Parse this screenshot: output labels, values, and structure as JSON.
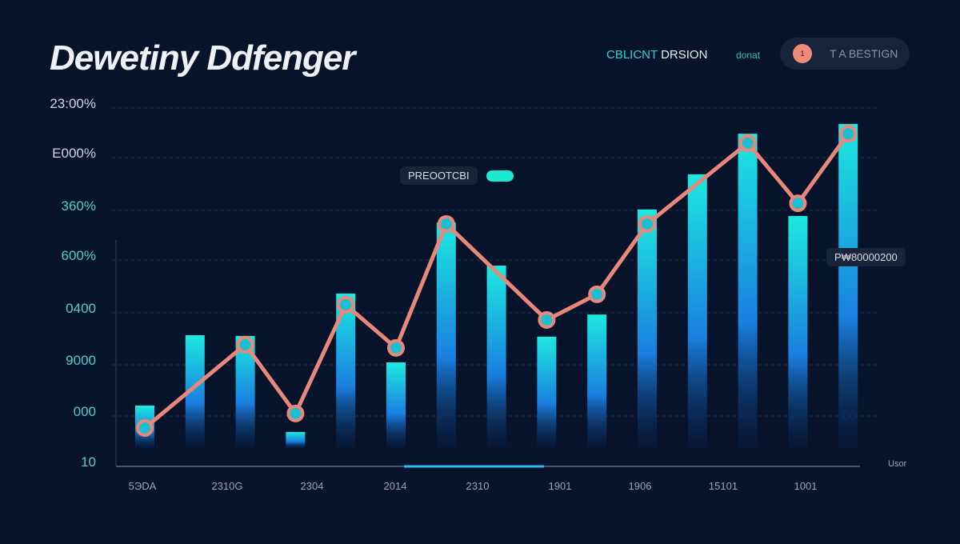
{
  "title": "Dewetiny Ddfenger",
  "header": {
    "label_a": "CBLICNT",
    "label_b": "DRSION",
    "small_link": "donat",
    "pill_badge": "1",
    "pill_text": "T A BESTIGN"
  },
  "annotations": {
    "legend_tag": "PREOOTCBI",
    "value_tag": "P₩80000200",
    "x_unit": "Usor"
  },
  "colors": {
    "bar_top": "#1de9e0",
    "bar_bottom": "#0a2a5a",
    "line": "#e8877a",
    "accent": "#2be0d0",
    "background": "#06132b"
  },
  "chart_data": {
    "type": "bar",
    "title": "Dewetiny Ddfenger",
    "y_tick_labels": [
      "23:00%",
      "E000%",
      "360%",
      "600%",
      "0400",
      "9000",
      "000",
      "10"
    ],
    "x_tick_labels": [
      "5ЭDA",
      "2310G",
      "2304",
      "2014",
      "2310",
      "1901",
      "1906",
      "15101",
      "1001"
    ],
    "ylim": [
      0,
      100
    ],
    "grid": true,
    "series": [
      {
        "name": "bars",
        "type": "bar",
        "values": [
          16.8,
          36.2,
          36,
          9.5,
          47.7,
          28.7,
          67.3,
          55.4,
          35.8,
          41.9,
          70.9,
          80.6,
          91.8,
          69.1,
          94.5
        ]
      },
      {
        "name": "line",
        "type": "line",
        "values": [
          10.6,
          null,
          33.6,
          14.6,
          44.6,
          32.7,
          66.9,
          null,
          40.4,
          47.5,
          66.9,
          null,
          89.2,
          72.6,
          91.8
        ]
      }
    ]
  }
}
